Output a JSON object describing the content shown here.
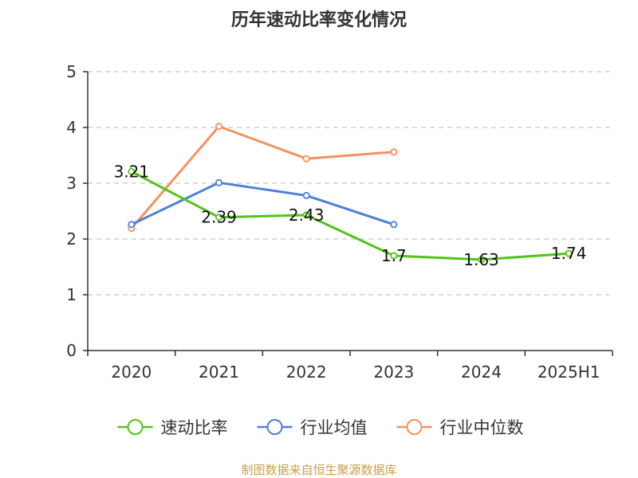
{
  "chart_data": {
    "type": "line",
    "title": "历年速动比率变化情况",
    "categories": [
      "2020",
      "2021",
      "2022",
      "2023",
      "2024",
      "2025H1"
    ],
    "ylim": [
      0,
      5
    ],
    "yticks": [
      "0",
      "1",
      "2",
      "3",
      "4",
      "5"
    ],
    "grid": true,
    "legend_position": "bottom",
    "series": [
      {
        "name": "速动比率",
        "color": "#52c41a",
        "values": [
          3.21,
          2.39,
          2.43,
          1.7,
          1.63,
          1.74
        ],
        "labels": [
          "3.21",
          "2.39",
          "2.43",
          "1.7",
          "1.63",
          "1.74"
        ]
      },
      {
        "name": "行业均值",
        "color": "#4e7fd9",
        "values": [
          2.26,
          3.01,
          2.78,
          2.26,
          null,
          null
        ]
      },
      {
        "name": "行业中位数",
        "color": "#f4915e",
        "values": [
          2.19,
          4.02,
          3.44,
          3.56,
          null,
          null
        ]
      }
    ]
  },
  "footer": {
    "source": "制图数据来自恒生聚源数据库",
    "source_color": "#c8a04a"
  }
}
